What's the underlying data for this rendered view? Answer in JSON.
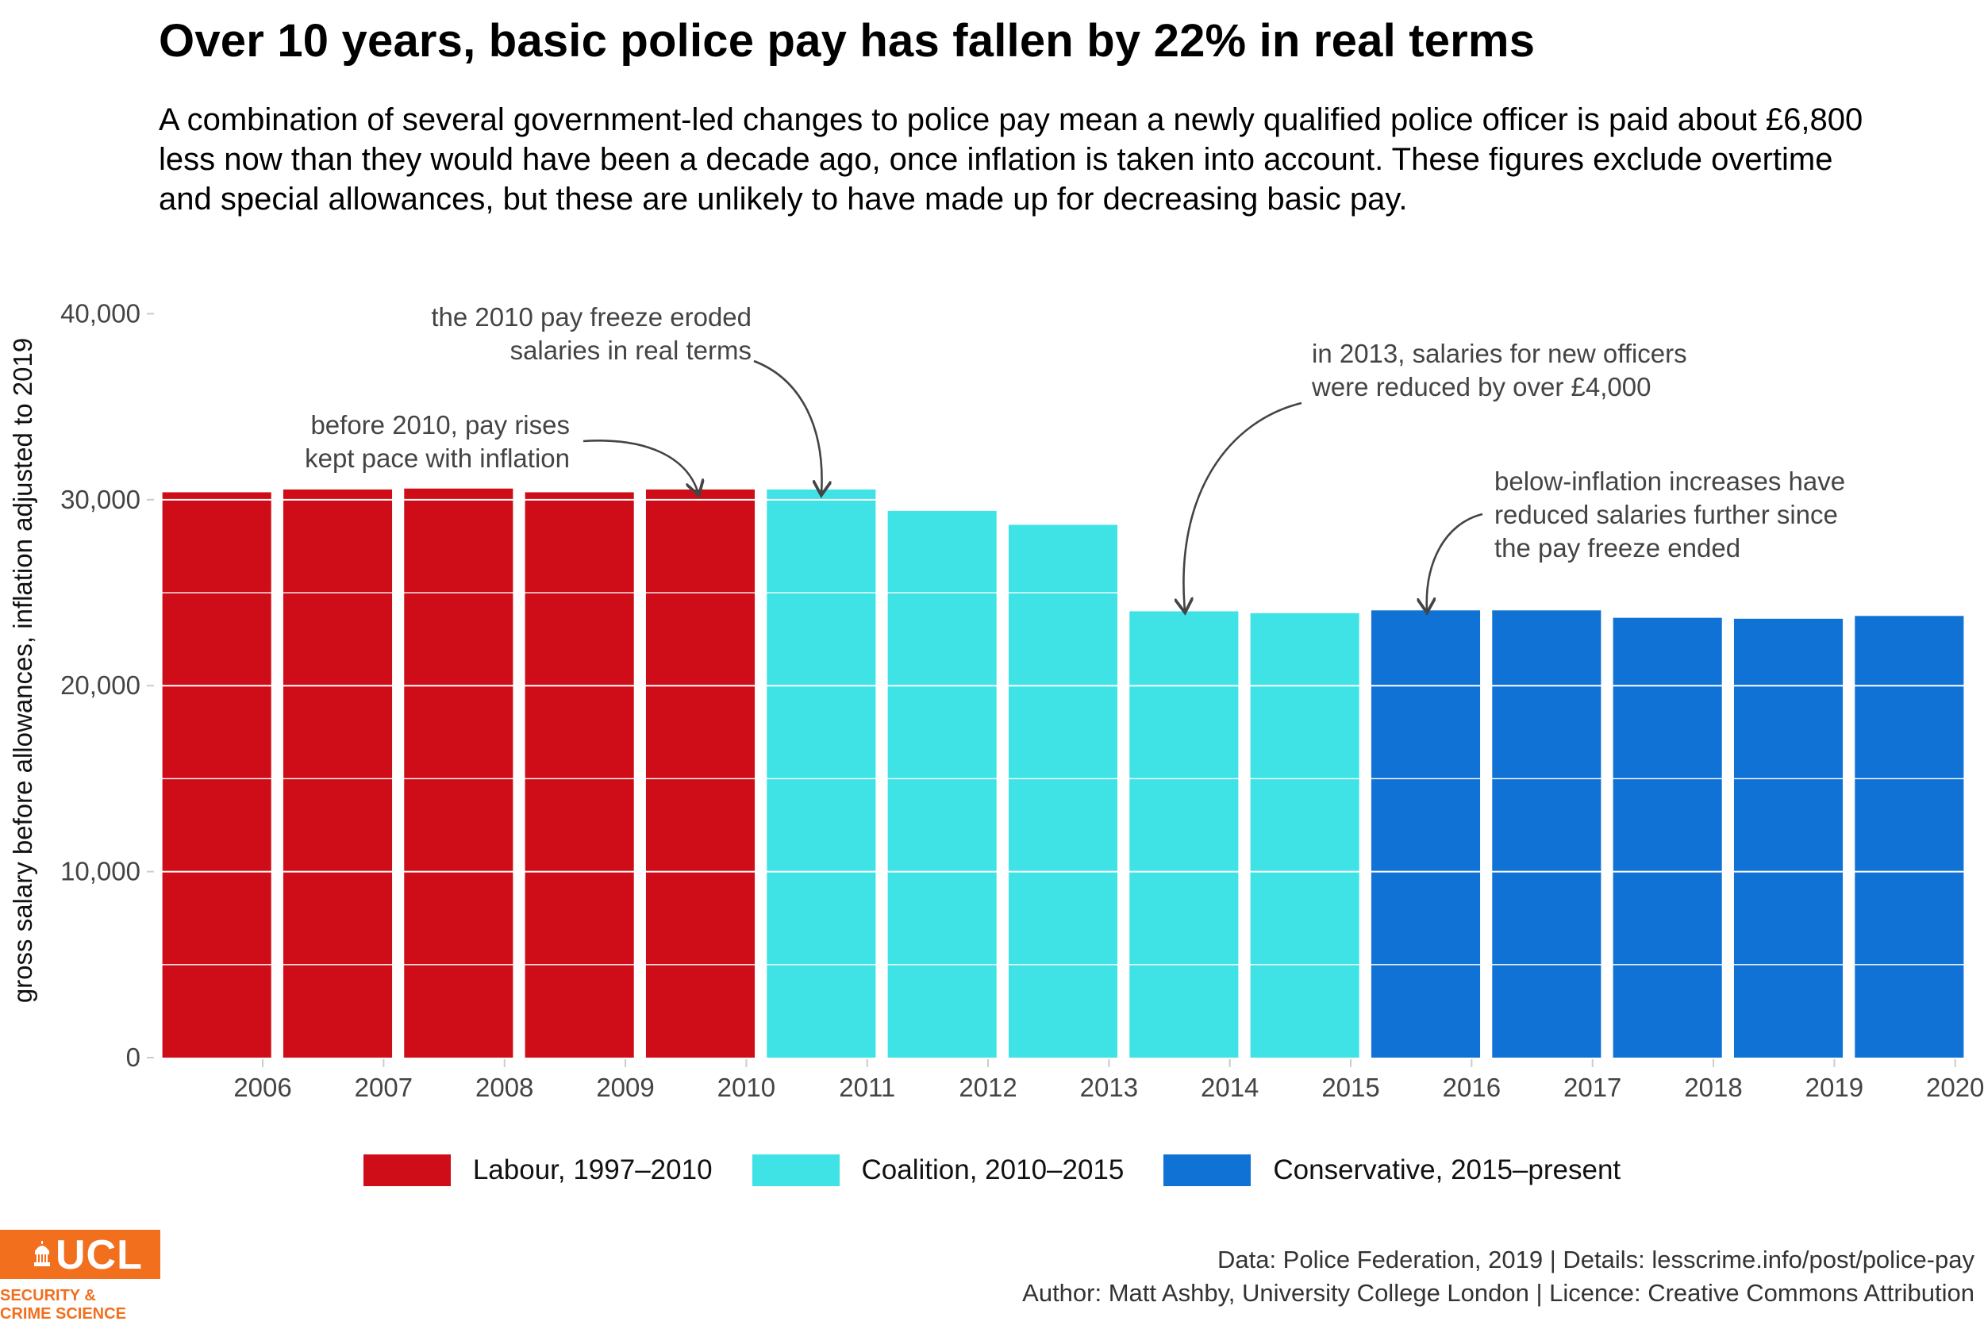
{
  "title": "Over 10 years, basic police pay has fallen by 22% in real terms",
  "subtitle": "A combination of several government-led changes to police pay mean a newly qualified police officer is paid about £6,800 less now than they would have been a decade ago, once inflation is taken into account. These figures exclude overtime and special allowances, but these are unlikely to have made up for decreasing basic pay.",
  "chart_data": {
    "type": "bar",
    "title": "Over 10 years, basic police pay has fallen by 22% in real terms",
    "ylabel": "gross salary before allowances, inflation adjusted to 2019",
    "xlabel": "",
    "ylim": [
      0,
      41000
    ],
    "yticks": [
      0,
      10000,
      20000,
      30000,
      40000
    ],
    "ytick_labels": [
      "0",
      "10,000",
      "20,000",
      "30,000",
      "40,000"
    ],
    "grid": true,
    "categories": [
      "2006",
      "2007",
      "2008",
      "2009",
      "2010",
      "2011",
      "2012",
      "2013",
      "2014",
      "2015",
      "2016",
      "2017",
      "2018",
      "2019",
      "2020"
    ],
    "values": [
      30400,
      30550,
      30600,
      30400,
      30550,
      30550,
      29400,
      28650,
      24000,
      23900,
      24050,
      24050,
      23650,
      23600,
      23750
    ],
    "groups": [
      "Labour, 1997–2010",
      "Labour, 1997–2010",
      "Labour, 1997–2010",
      "Labour, 1997–2010",
      "Labour, 1997–2010",
      "Coalition, 2010–2015",
      "Coalition, 2010–2015",
      "Coalition, 2010–2015",
      "Coalition, 2010–2015",
      "Coalition, 2010–2015",
      "Conservative, 2015–present",
      "Conservative, 2015–present",
      "Conservative, 2015–present",
      "Conservative, 2015–present",
      "Conservative, 2015–present"
    ],
    "legend": [
      {
        "name": "Labour, 1997–2010",
        "color": "#cf0d18"
      },
      {
        "name": "Coalition, 2010–2015",
        "color": "#3fe3e6"
      },
      {
        "name": "Conservative, 2015–present",
        "color": "#1072d5"
      }
    ],
    "legend_position": "bottom",
    "annotations": [
      {
        "id": "a1",
        "lines": [
          "before 2010, pay rises",
          "kept pace with inflation"
        ],
        "points_to": "2010"
      },
      {
        "id": "a2",
        "lines": [
          "the 2010 pay freeze eroded",
          "salaries in real terms"
        ],
        "points_to": "2011"
      },
      {
        "id": "a3",
        "lines": [
          "in 2013, salaries for new officers",
          "were reduced by over £4,000"
        ],
        "points_to": "2014"
      },
      {
        "id": "a4",
        "lines": [
          "below-inflation increases have",
          "reduced salaries further since",
          "the pay freeze ended"
        ],
        "points_to": "2016"
      }
    ]
  },
  "footer": {
    "line1": "Data: Police Federation, 2019 |  Details: lesscrime.info/post/police-pay",
    "line2": "Author: Matt Ashby, University College London |  Licence: Creative Commons Attribution"
  },
  "logo": {
    "wordmark": "UCL",
    "subtext": "SECURITY &\nCRIME SCIENCE",
    "color": "#f26f1e"
  }
}
